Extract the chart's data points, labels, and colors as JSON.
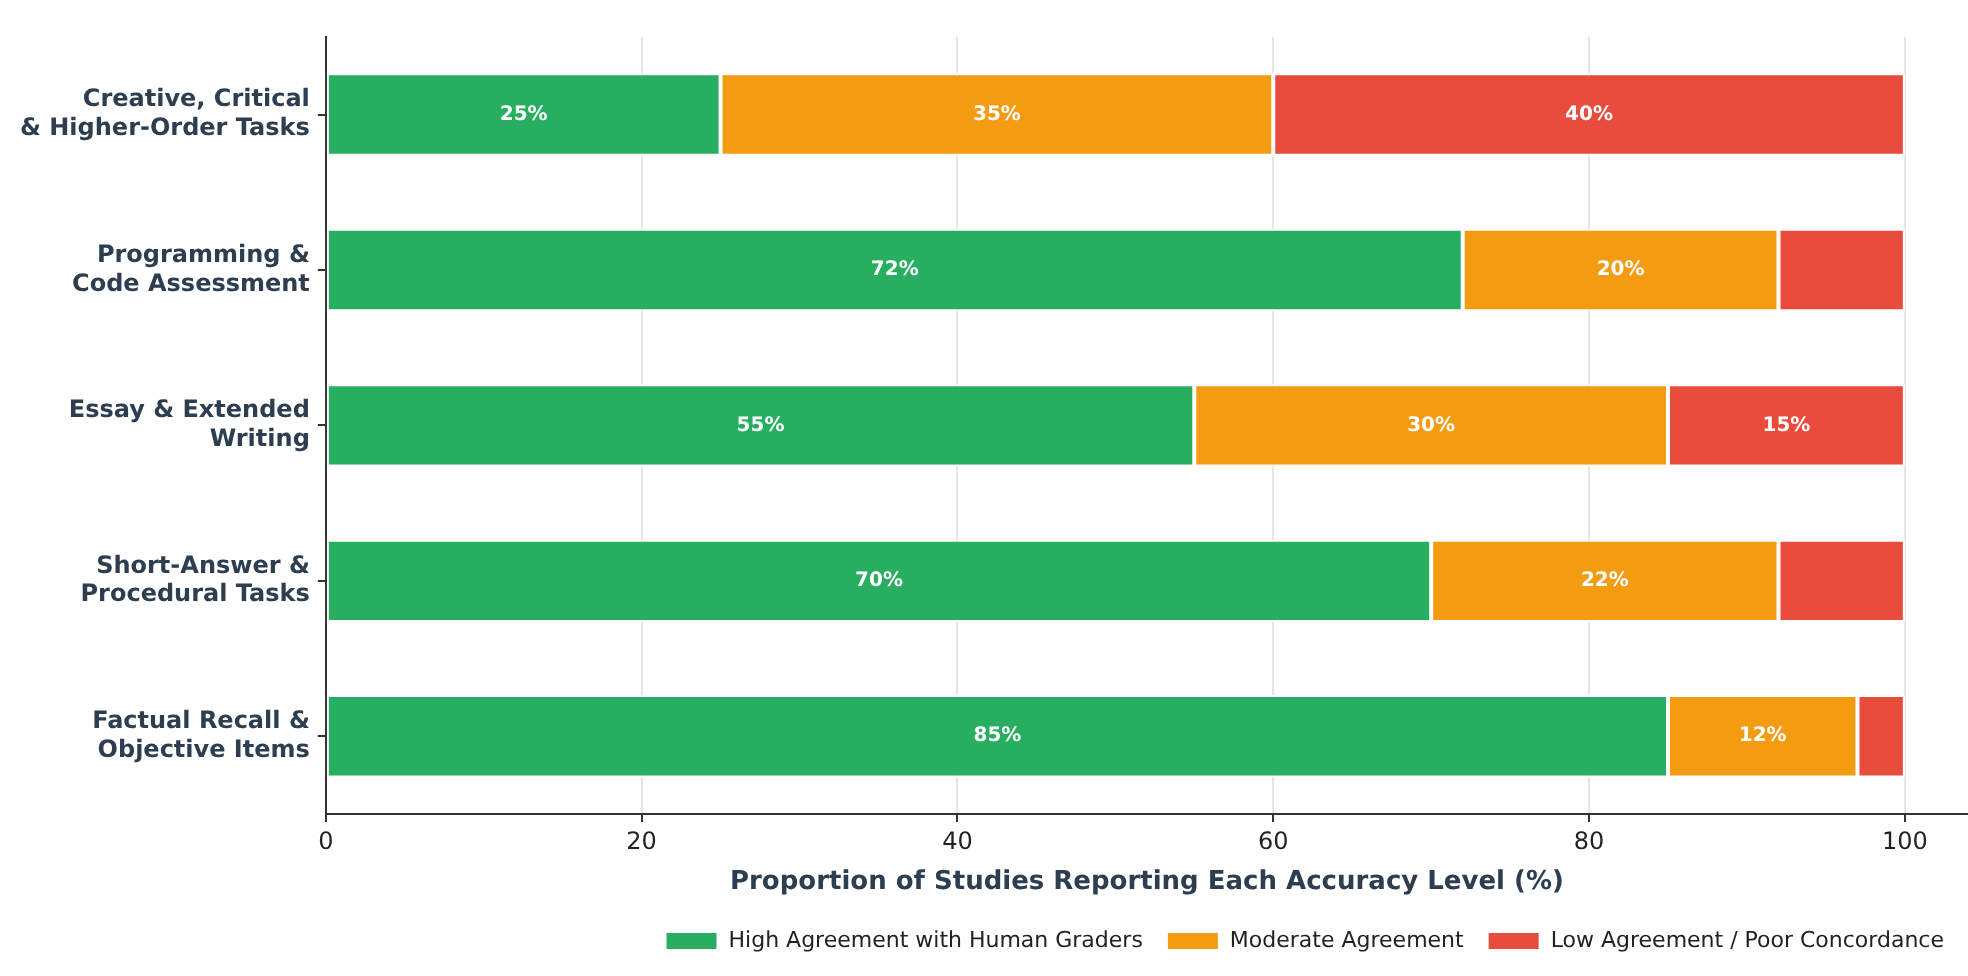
{
  "chart_data": {
    "type": "bar",
    "orientation": "horizontal",
    "stacked": true,
    "categories": [
      "Creative, Critical\n& Higher-Order Tasks",
      "Programming &\nCode Assessment",
      "Essay & Extended\nWriting",
      "Short-Answer &\nProcedural Tasks",
      "Factual Recall &\nObjective Items"
    ],
    "series": [
      {
        "name": "High Agreement with Human Graders",
        "color": "#27ae60",
        "values": [
          25,
          72,
          55,
          70,
          85
        ],
        "value_labels": [
          "25%",
          "72%",
          "55%",
          "70%",
          "85%"
        ]
      },
      {
        "name": "Moderate Agreement",
        "color": "#f39c12",
        "values": [
          35,
          20,
          30,
          22,
          12
        ],
        "value_labels": [
          "35%",
          "20%",
          "30%",
          "22%",
          "12%"
        ]
      },
      {
        "name": "Low Agreement / Poor Concordance",
        "color": "#e74c3c",
        "values": [
          40,
          8,
          15,
          8,
          3
        ],
        "value_labels": [
          "40%",
          null,
          "15%",
          null,
          null
        ]
      }
    ],
    "xlabel": "Proportion of Studies Reporting Each Accuracy Level (%)",
    "xlim": [
      0,
      104
    ],
    "xticks": [
      0,
      20,
      40,
      60,
      80,
      100
    ],
    "grid": "x",
    "legend": "bottom right"
  }
}
